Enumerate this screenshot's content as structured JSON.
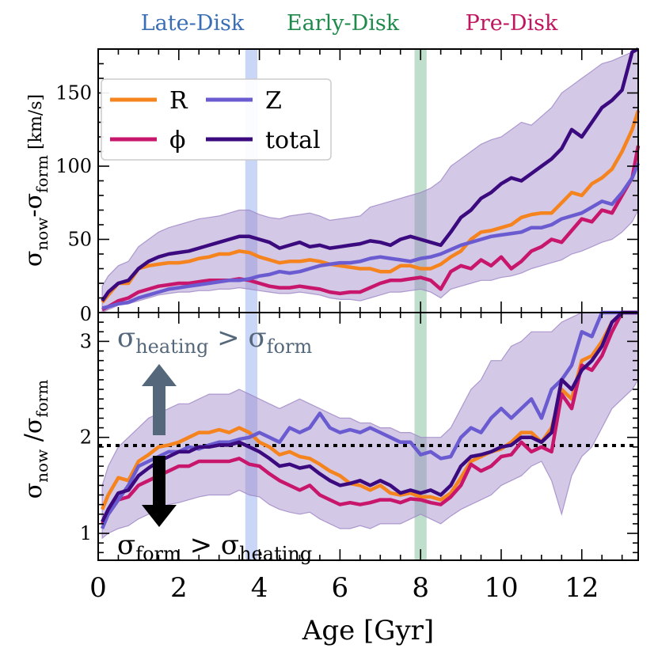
{
  "colors": {
    "R": "#f5841f",
    "Z": "#6a5bd1",
    "phi": "#c7166b",
    "total": "#3b0a7f",
    "band_fill": "#9d86c6",
    "late_band": "#9db5f2",
    "early_band": "#7fbf9a",
    "late_label": "#3a6fb5",
    "early_label": "#1f8a4c",
    "pre_label": "#c0165f",
    "annotation_gray": "#55677a",
    "annotation_black": "#000000"
  },
  "chart_data": [
    {
      "type": "line",
      "panel": "top",
      "ylabel_main": "σ",
      "ylabel_sub1": "now",
      "ylabel_dash": "-σ",
      "ylabel_sub2": "form",
      "ylabel_unit": " [km/s]",
      "xlim": [
        0,
        13.4
      ],
      "ylim": [
        0,
        180
      ],
      "yticks": [
        50,
        100,
        150
      ],
      "x": [
        0.1,
        0.25,
        0.5,
        0.75,
        1.0,
        1.25,
        1.5,
        1.75,
        2.0,
        2.25,
        2.5,
        2.75,
        3.0,
        3.25,
        3.5,
        3.75,
        4.0,
        4.25,
        4.5,
        4.75,
        5.0,
        5.25,
        5.5,
        5.75,
        6.0,
        6.25,
        6.5,
        6.75,
        7.0,
        7.25,
        7.5,
        7.75,
        8.0,
        8.25,
        8.5,
        8.75,
        9.0,
        9.25,
        9.5,
        9.75,
        10.0,
        10.25,
        10.5,
        10.75,
        11.0,
        11.25,
        11.5,
        11.75,
        12.0,
        12.25,
        12.5,
        12.75,
        13.0,
        13.25,
        13.4
      ],
      "series": [
        {
          "name": "R",
          "values": [
            7,
            12,
            20,
            20,
            30,
            32,
            33,
            34,
            34,
            35,
            37,
            38,
            40,
            40,
            42,
            41,
            38,
            36,
            34,
            35,
            35,
            36,
            35,
            33,
            32,
            31,
            30,
            30,
            28,
            28,
            32,
            32,
            30,
            30,
            33,
            38,
            42,
            50,
            55,
            56,
            58,
            60,
            65,
            67,
            68,
            68,
            75,
            82,
            80,
            88,
            92,
            98,
            110,
            125,
            138
          ]
        },
        {
          "name": "phi",
          "values": [
            2,
            4,
            8,
            10,
            14,
            16,
            18,
            19,
            20,
            20,
            21,
            22,
            22,
            22,
            23,
            22,
            20,
            18,
            17,
            17,
            18,
            17,
            16,
            14,
            13,
            14,
            14,
            17,
            20,
            22,
            22,
            23,
            24,
            22,
            16,
            28,
            32,
            30,
            36,
            32,
            38,
            30,
            35,
            42,
            45,
            50,
            48,
            56,
            64,
            62,
            70,
            68,
            80,
            92,
            114
          ]
        },
        {
          "name": "Z",
          "values": [
            3,
            4,
            6,
            7,
            10,
            12,
            14,
            16,
            17,
            18,
            19,
            20,
            21,
            22,
            22,
            23,
            25,
            26,
            28,
            27,
            28,
            30,
            32,
            33,
            34,
            34,
            35,
            37,
            38,
            37,
            36,
            35,
            37,
            38,
            40,
            43,
            46,
            48,
            50,
            52,
            53,
            54,
            55,
            58,
            58,
            60,
            64,
            66,
            68,
            72,
            76,
            74,
            82,
            92,
            102
          ]
        },
        {
          "name": "total",
          "values": [
            8,
            14,
            20,
            22,
            30,
            35,
            38,
            40,
            41,
            42,
            44,
            46,
            48,
            50,
            52,
            52,
            50,
            48,
            44,
            46,
            48,
            45,
            46,
            44,
            45,
            46,
            47,
            49,
            48,
            46,
            50,
            52,
            50,
            48,
            46,
            55,
            65,
            70,
            78,
            82,
            88,
            92,
            90,
            95,
            100,
            105,
            112,
            125,
            120,
            130,
            140,
            145,
            152,
            178,
            180
          ]
        },
        {
          "name": "band_upper",
          "values": [
            18,
            25,
            32,
            35,
            45,
            50,
            55,
            58,
            60,
            62,
            64,
            65,
            66,
            68,
            70,
            70,
            67,
            65,
            64,
            66,
            67,
            68,
            66,
            63,
            64,
            65,
            66,
            72,
            74,
            76,
            78,
            80,
            82,
            85,
            90,
            100,
            105,
            110,
            115,
            118,
            120,
            125,
            130,
            128,
            134,
            140,
            150,
            155,
            160,
            165,
            170,
            172,
            175,
            178,
            180
          ]
        },
        {
          "name": "band_lower",
          "values": [
            0,
            2,
            5,
            6,
            8,
            10,
            12,
            13,
            14,
            14,
            15,
            15,
            16,
            16,
            17,
            16,
            15,
            14,
            13,
            13,
            14,
            13,
            12,
            10,
            9,
            9,
            8,
            10,
            12,
            14,
            14,
            15,
            16,
            14,
            10,
            16,
            18,
            20,
            22,
            22,
            24,
            25,
            27,
            30,
            32,
            34,
            36,
            40,
            42,
            45,
            48,
            50,
            55,
            62,
            70
          ]
        }
      ]
    },
    {
      "type": "line",
      "panel": "bottom",
      "ylabel_main": "σ",
      "ylabel_sub1": "now",
      "ylabel_dash": " /σ",
      "ylabel_sub2": "form",
      "xlabel": "Age [Gyr]",
      "xlim": [
        0,
        13.4
      ],
      "ylim": [
        0.72,
        3.3
      ],
      "yticks": [
        1,
        2,
        3
      ],
      "ytick_extra": "0",
      "xticks": [
        0,
        2,
        4,
        6,
        8,
        10,
        12
      ],
      "reference_line": 2,
      "x": [
        0.1,
        0.25,
        0.5,
        0.75,
        1.0,
        1.25,
        1.5,
        1.75,
        2.0,
        2.25,
        2.5,
        2.75,
        3.0,
        3.25,
        3.5,
        3.75,
        4.0,
        4.25,
        4.5,
        4.75,
        5.0,
        5.25,
        5.5,
        5.75,
        6.0,
        6.25,
        6.5,
        6.75,
        7.0,
        7.25,
        7.5,
        7.75,
        8.0,
        8.25,
        8.5,
        8.75,
        9.0,
        9.25,
        9.5,
        9.75,
        10.0,
        10.25,
        10.5,
        10.75,
        11.0,
        11.25,
        11.5,
        11.75,
        12.0,
        12.25,
        12.5,
        12.75,
        13.0,
        13.25,
        13.4
      ],
      "series": [
        {
          "name": "R",
          "values": [
            1.25,
            1.4,
            1.58,
            1.55,
            1.75,
            1.82,
            1.9,
            1.92,
            1.95,
            2.0,
            2.05,
            2.05,
            2.08,
            2.05,
            2.1,
            2.05,
            1.95,
            1.9,
            1.82,
            1.85,
            1.8,
            1.78,
            1.72,
            1.65,
            1.6,
            1.52,
            1.5,
            1.45,
            1.5,
            1.42,
            1.4,
            1.42,
            1.38,
            1.38,
            1.35,
            1.42,
            1.58,
            1.75,
            1.8,
            1.85,
            1.88,
            1.95,
            2.05,
            2.05,
            1.95,
            2.1,
            2.5,
            2.4,
            2.8,
            2.85,
            3.0,
            3.2,
            3.3,
            3.3,
            3.3
          ]
        },
        {
          "name": "phi",
          "values": [
            1.1,
            1.2,
            1.35,
            1.38,
            1.5,
            1.55,
            1.6,
            1.65,
            1.7,
            1.7,
            1.75,
            1.75,
            1.75,
            1.75,
            1.78,
            1.72,
            1.7,
            1.62,
            1.55,
            1.5,
            1.45,
            1.5,
            1.4,
            1.35,
            1.3,
            1.32,
            1.3,
            1.32,
            1.35,
            1.35,
            1.32,
            1.36,
            1.35,
            1.32,
            1.3,
            1.38,
            1.5,
            1.72,
            1.65,
            1.7,
            1.8,
            1.82,
            1.95,
            1.85,
            1.9,
            1.85,
            2.45,
            2.3,
            2.75,
            2.7,
            2.85,
            3.1,
            3.3,
            3.3,
            3.3
          ]
        },
        {
          "name": "Z",
          "values": [
            1.05,
            1.2,
            1.35,
            1.5,
            1.7,
            1.75,
            1.8,
            1.85,
            1.85,
            1.9,
            1.88,
            1.92,
            1.95,
            1.95,
            1.98,
            2.0,
            2.05,
            2.0,
            1.95,
            2.1,
            2.05,
            2.1,
            2.25,
            2.1,
            2.05,
            2.08,
            2.05,
            2.1,
            2.05,
            2.0,
            1.95,
            1.95,
            1.82,
            1.85,
            1.78,
            1.8,
            2.0,
            2.1,
            2.05,
            2.2,
            2.3,
            2.2,
            2.3,
            2.4,
            2.2,
            2.5,
            2.6,
            2.75,
            3.1,
            3.05,
            3.4,
            3.3,
            3.3,
            3.3,
            3.3
          ]
        },
        {
          "name": "total",
          "values": [
            1.12,
            1.25,
            1.42,
            1.45,
            1.6,
            1.68,
            1.75,
            1.8,
            1.85,
            1.85,
            1.9,
            1.9,
            1.92,
            1.92,
            1.95,
            1.9,
            1.85,
            1.78,
            1.7,
            1.72,
            1.68,
            1.7,
            1.62,
            1.55,
            1.5,
            1.52,
            1.55,
            1.5,
            1.55,
            1.5,
            1.42,
            1.45,
            1.42,
            1.45,
            1.4,
            1.5,
            1.7,
            1.8,
            1.82,
            1.85,
            1.9,
            1.92,
            2.0,
            2.0,
            1.95,
            2.05,
            2.6,
            2.5,
            2.7,
            2.8,
            2.95,
            3.2,
            3.3,
            3.3,
            3.3
          ]
        },
        {
          "name": "band_upper",
          "values": [
            1.5,
            1.7,
            1.9,
            2.0,
            2.1,
            2.2,
            2.25,
            2.3,
            2.35,
            2.35,
            2.4,
            2.45,
            2.45,
            2.45,
            2.5,
            2.45,
            2.4,
            2.35,
            2.3,
            2.35,
            2.4,
            2.35,
            2.3,
            2.25,
            2.2,
            2.2,
            2.15,
            2.15,
            2.1,
            2.1,
            2.05,
            2.05,
            2.0,
            2.0,
            2.0,
            2.1,
            2.3,
            2.5,
            2.6,
            2.8,
            2.8,
            2.95,
            3.0,
            3.1,
            3.1,
            3.1,
            3.2,
            3.25,
            3.3,
            3.3,
            3.3,
            3.3,
            3.3,
            3.3,
            3.3
          ]
        },
        {
          "name": "band_lower",
          "values": [
            0.95,
            1.0,
            1.05,
            1.08,
            1.15,
            1.2,
            1.25,
            1.3,
            1.32,
            1.35,
            1.38,
            1.4,
            1.4,
            1.4,
            1.45,
            1.4,
            1.38,
            1.3,
            1.25,
            1.22,
            1.2,
            1.22,
            1.15,
            1.1,
            1.05,
            1.05,
            1.08,
            1.05,
            1.1,
            1.1,
            1.1,
            1.15,
            1.2,
            1.15,
            1.1,
            1.18,
            1.25,
            1.3,
            1.35,
            1.4,
            1.5,
            1.55,
            1.6,
            1.7,
            1.75,
            1.55,
            1.2,
            1.6,
            1.8,
            1.9,
            2.1,
            2.3,
            2.4,
            2.5,
            2.6
          ]
        }
      ]
    }
  ],
  "bands": [
    {
      "name": "Late-Disk",
      "x_range": [
        3.65,
        3.95
      ]
    },
    {
      "name": "Early-Disk",
      "x_range": [
        7.85,
        8.15
      ]
    },
    {
      "name": "Pre-Disk",
      "x_center": 10.5
    }
  ],
  "legend": {
    "entries": [
      {
        "key": "R",
        "label": "R"
      },
      {
        "key": "Z",
        "label": "Z"
      },
      {
        "key": "phi",
        "label": "ϕ"
      },
      {
        "key": "total",
        "label": "total"
      }
    ]
  },
  "annotations": {
    "heating_top": {
      "sigma": "σ",
      "sub1": "heating",
      "op": " > ",
      "sub2": "form"
    },
    "heating_bottom": {
      "sigma": "σ",
      "sub1": "form",
      "op": " > ",
      "sub2": "heating"
    }
  }
}
